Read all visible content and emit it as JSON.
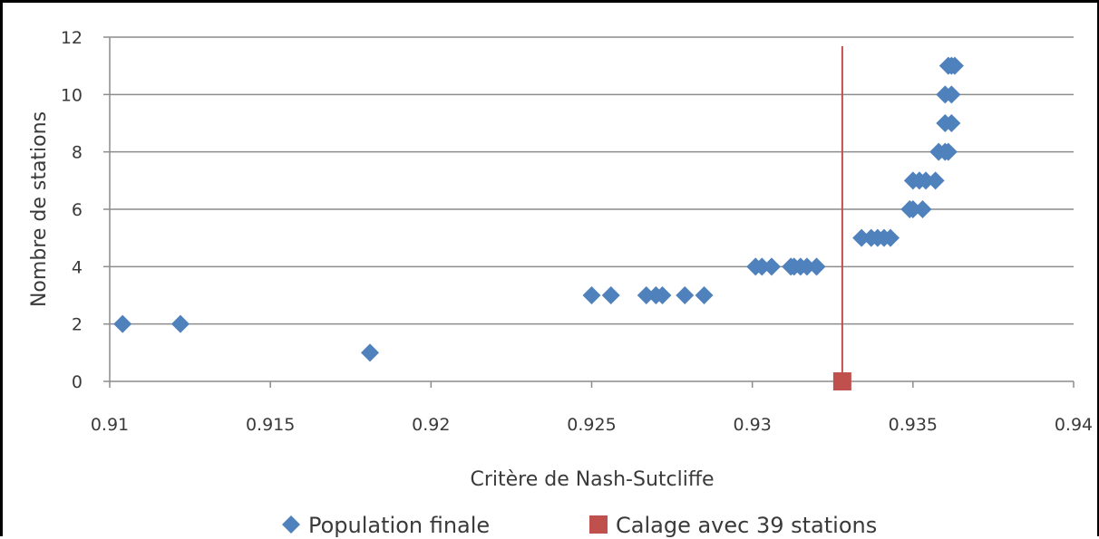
{
  "chart_data": {
    "type": "scatter",
    "title": "",
    "xlabel": "Critère de Nash-Sutcliffe",
    "ylabel": "Nombre de stations",
    "xlim": [
      0.91,
      0.94
    ],
    "ylim": [
      0,
      12
    ],
    "x_ticks": [
      0.91,
      0.915,
      0.92,
      0.925,
      0.93,
      0.935,
      0.94
    ],
    "x_tick_labels": [
      "0.91",
      "0.915",
      "0.92",
      "0.925",
      "0.93",
      "0.935",
      "0.94"
    ],
    "y_ticks": [
      0,
      2,
      4,
      6,
      8,
      10,
      12
    ],
    "y_tick_labels": [
      "0",
      "2",
      "4",
      "6",
      "8",
      "10",
      "12"
    ],
    "grid": "horizontal",
    "legend_position": "bottom",
    "series": [
      {
        "name": "Population finale",
        "marker": "diamond",
        "color": "#4f81bd",
        "points": [
          [
            0.9104,
            2
          ],
          [
            0.9122,
            2
          ],
          [
            0.9181,
            1
          ],
          [
            0.925,
            3
          ],
          [
            0.9256,
            3
          ],
          [
            0.9267,
            3
          ],
          [
            0.927,
            3
          ],
          [
            0.9272,
            3
          ],
          [
            0.9279,
            3
          ],
          [
            0.9285,
            3
          ],
          [
            0.9301,
            4
          ],
          [
            0.9303,
            4
          ],
          [
            0.9306,
            4
          ],
          [
            0.9312,
            4
          ],
          [
            0.9313,
            4
          ],
          [
            0.9315,
            4
          ],
          [
            0.9317,
            4
          ],
          [
            0.932,
            4
          ],
          [
            0.9334,
            5
          ],
          [
            0.9337,
            5
          ],
          [
            0.9339,
            5
          ],
          [
            0.9341,
            5
          ],
          [
            0.9343,
            5
          ],
          [
            0.9349,
            6
          ],
          [
            0.935,
            6
          ],
          [
            0.9353,
            6
          ],
          [
            0.935,
            7
          ],
          [
            0.9352,
            7
          ],
          [
            0.9354,
            7
          ],
          [
            0.9357,
            7
          ],
          [
            0.9358,
            8
          ],
          [
            0.936,
            8
          ],
          [
            0.9361,
            8
          ],
          [
            0.936,
            9
          ],
          [
            0.9362,
            9
          ],
          [
            0.936,
            10
          ],
          [
            0.9362,
            10
          ],
          [
            0.9361,
            11
          ],
          [
            0.9362,
            11
          ],
          [
            0.9363,
            11
          ]
        ]
      },
      {
        "name": "Calage avec 39 stations",
        "marker": "square",
        "color": "#c0504d",
        "points": [
          [
            0.9328,
            0
          ]
        ]
      }
    ],
    "reference_line": {
      "x": 0.9328,
      "color": "#c0504d"
    }
  },
  "colors": {
    "grid": "#8c8c8c",
    "axis": "#8c8c8c",
    "text": "#3a3a3a"
  }
}
